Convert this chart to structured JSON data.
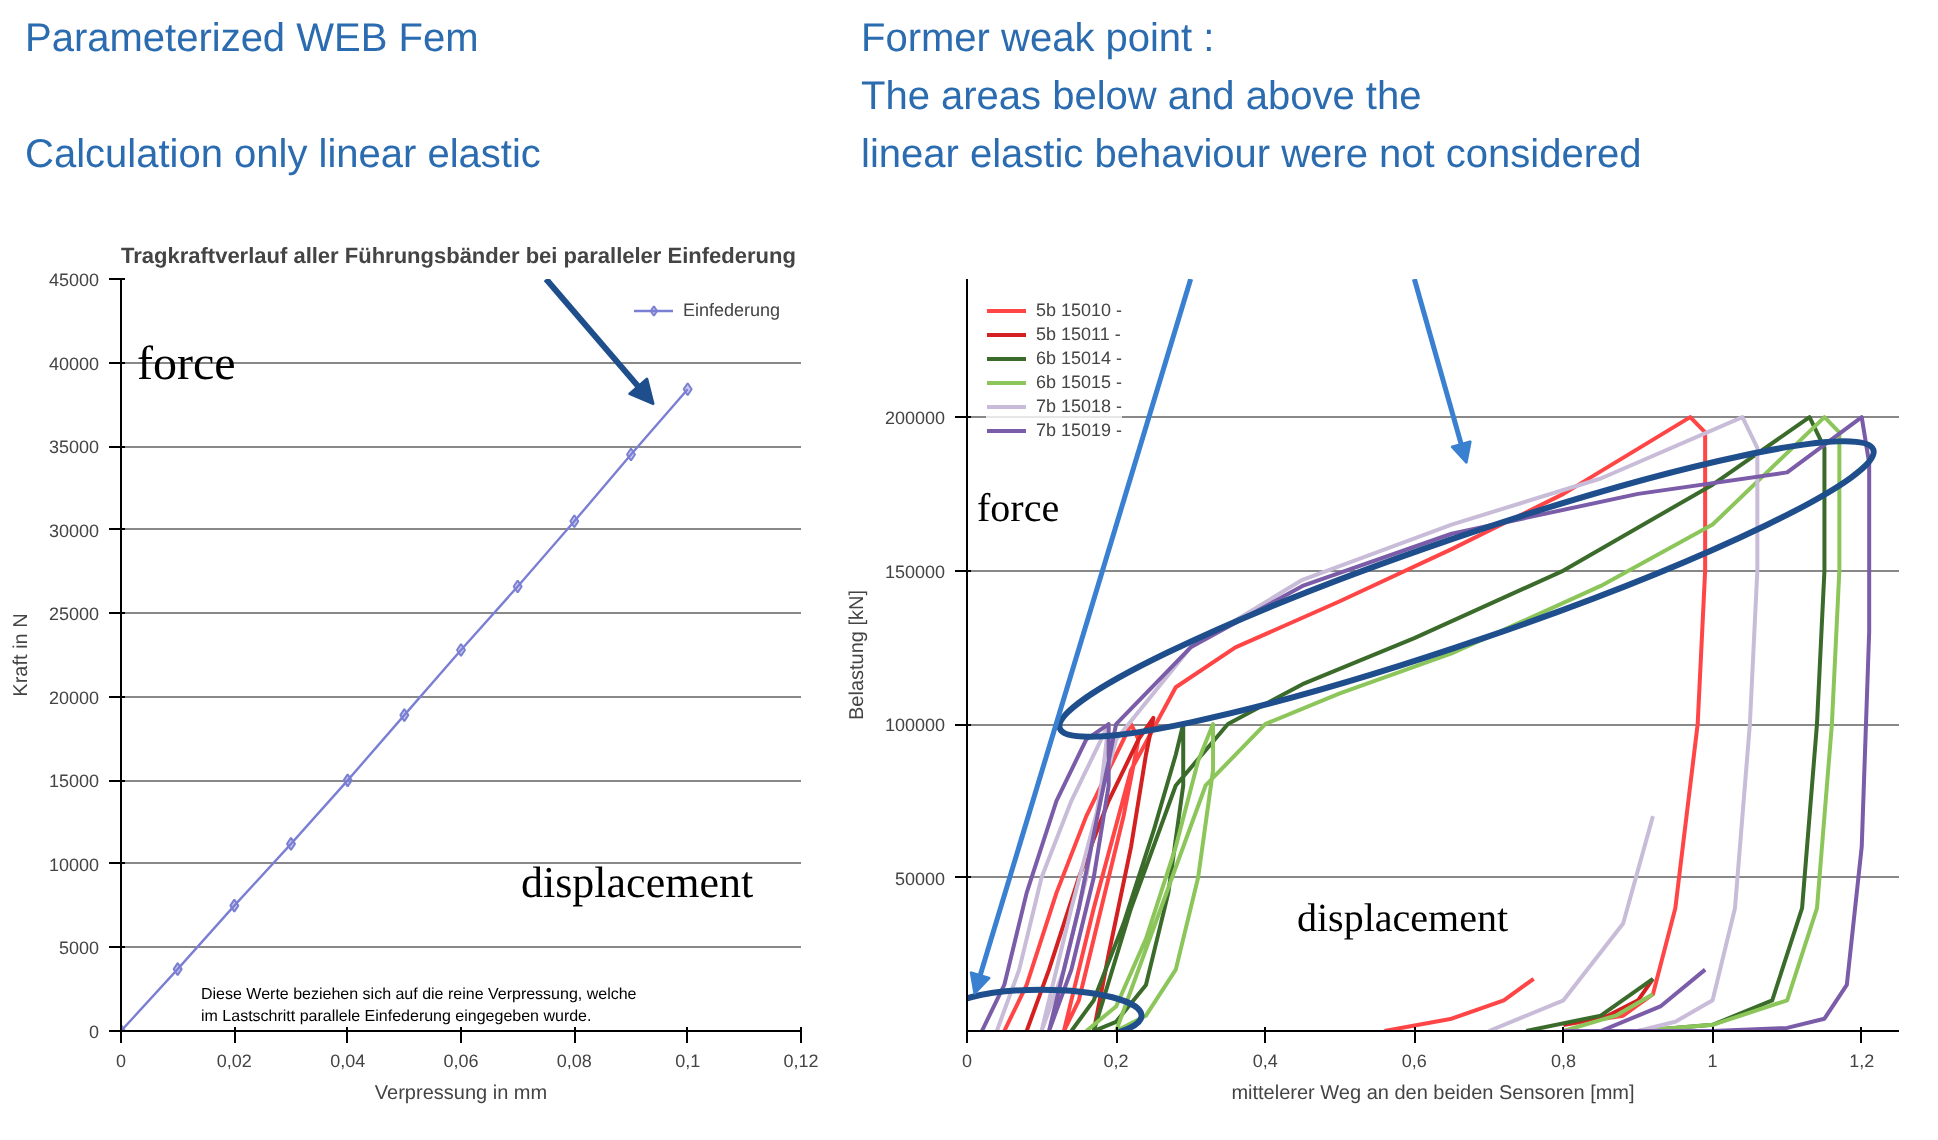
{
  "chart_data": [
    {
      "type": "other",
      "annotations": [
        "Parameterized WEB Fem",
        "Calculation only linear elastic"
      ]
    },
    {
      "type": "other",
      "annotations": [
        "Former weak point :",
        "The areas below and above the",
        "linear elastic  behaviour  were not considered"
      ]
    },
    {
      "type": "line",
      "title": "Tragkraftverlauf aller Führungsbänder bei paralleler Einfederung",
      "xlabel": "Verpressung in mm",
      "ylabel": "Kraft in N",
      "x": [
        0,
        0.01,
        0.02,
        0.03,
        0.04,
        0.05,
        0.06,
        0.07,
        0.08,
        0.09,
        0.1
      ],
      "series": [
        {
          "name": "Einfederung",
          "color": "#7b7fd4",
          "values": [
            0,
            3700,
            7500,
            11200,
            15000,
            18900,
            22800,
            26600,
            30500,
            34500,
            38400
          ]
        }
      ],
      "xlim": [
        0,
        0.12
      ],
      "ylim": [
        0,
        45000
      ],
      "xticks": [
        0,
        {
          "value": 0.02,
          "label": "0,02"
        },
        {
          "value": 0.04,
          "label": "0,04"
        },
        {
          "value": 0.06,
          "label": "0,06"
        },
        {
          "value": 0.08,
          "label": "0,08"
        },
        {
          "value": 0.1,
          "label": "0,1"
        },
        {
          "value": 0.12,
          "label": "0,12"
        }
      ],
      "yticks": [
        0,
        5000,
        10000,
        15000,
        20000,
        25000,
        30000,
        35000,
        40000,
        45000
      ],
      "grid": "y",
      "legend": "top right",
      "marker": "diamond",
      "annotations": [
        "force",
        "displacement",
        "Diese Werte beziehen sich auf die reine Verpressung, welche im Lastschritt parallele Einfederung eingegeben wurde."
      ]
    },
    {
      "type": "line",
      "xlabel": "mittelerer Weg an den beiden Sensoren [mm]",
      "ylabel": "Belastung [kN]",
      "series": [
        {
          "name": "5b 15010 -",
          "color": "#ff4545",
          "x": [
            0.05,
            0.08,
            0.12,
            0.16,
            0.2,
            0.22,
            0.23,
            0.21,
            0.18,
            0.15,
            0.13,
            0.13,
            0.17,
            0.22,
            0.28,
            0.36,
            0.5,
            0.65,
            0.8,
            0.97,
            0.99,
            0.99,
            0.98,
            0.95,
            0.92,
            0.88,
            0.8,
            null,
            0.56,
            0.65,
            0.72,
            0.76
          ],
          "values": [
            0,
            15000,
            45000,
            70000,
            90000,
            100000,
            95000,
            70000,
            40000,
            10000,
            0,
            0,
            40000,
            85000,
            112000,
            125000,
            140000,
            157000,
            175000,
            200000,
            195000,
            150000,
            100000,
            40000,
            12000,
            5000,
            2000,
            null,
            0,
            4000,
            10000,
            17000
          ]
        },
        {
          "name": "5b 15011 -",
          "color": "#d42020",
          "x": [
            0.08,
            0.11,
            0.15,
            0.19,
            0.23,
            0.25,
            0.24,
            0.22,
            0.19,
            0.17,
            null,
            0.8,
            0.86,
            0.9,
            0.92
          ],
          "values": [
            0,
            20000,
            50000,
            75000,
            95000,
            102000,
            90000,
            60000,
            25000,
            0,
            null,
            2000,
            5000,
            10000,
            17000
          ]
        },
        {
          "name": "6b 15014 -",
          "color": "#3a6b2a",
          "x": [
            0.14,
            0.17,
            0.21,
            0.25,
            0.28,
            0.29,
            0.29,
            0.27,
            0.24,
            0.2,
            0.17,
            0.17,
            0.22,
            0.28,
            0.35,
            0.45,
            0.6,
            0.8,
            1.0,
            1.13,
            1.15,
            1.15,
            1.14,
            1.12,
            1.08,
            1.0,
            0.9,
            null,
            0.75,
            0.85,
            0.92
          ],
          "values": [
            0,
            10000,
            35000,
            65000,
            90000,
            100000,
            80000,
            45000,
            15000,
            3000,
            0,
            0,
            40000,
            80000,
            100000,
            113000,
            128000,
            150000,
            178000,
            200000,
            190000,
            150000,
            100000,
            40000,
            10000,
            2000,
            0,
            null,
            0,
            5000,
            17000
          ]
        },
        {
          "name": "6b 15015 -",
          "color": "#8cc65a",
          "x": [
            0.16,
            0.2,
            0.24,
            0.28,
            0.31,
            0.33,
            0.33,
            0.31,
            0.28,
            0.24,
            0.2,
            0.2,
            0.26,
            0.32,
            0.4,
            0.5,
            0.65,
            0.85,
            1.0,
            1.15,
            1.17,
            1.17,
            1.16,
            1.14,
            1.1,
            1.0,
            0.9,
            null,
            0.8,
            0.87,
            0.92
          ],
          "values": [
            0,
            8000,
            30000,
            60000,
            88000,
            100000,
            85000,
            50000,
            20000,
            5000,
            0,
            0,
            40000,
            80000,
            100000,
            110000,
            123000,
            145000,
            165000,
            200000,
            195000,
            150000,
            100000,
            40000,
            10000,
            2000,
            0,
            null,
            0,
            5000,
            12000
          ]
        },
        {
          "name": "7b 15018 -",
          "color": "#c8bcd8",
          "x": [
            0.04,
            0.07,
            0.1,
            0.14,
            0.18,
            0.19,
            0.18,
            0.16,
            0.13,
            0.1,
            0.1,
            0.14,
            0.2,
            0.3,
            0.45,
            0.65,
            0.85,
            1.04,
            1.06,
            1.06,
            1.05,
            1.03,
            1.0,
            0.95,
            0.9,
            null,
            0.7,
            0.8,
            0.88,
            0.92
          ],
          "values": [
            0,
            20000,
            50000,
            75000,
            95000,
            100000,
            80000,
            50000,
            20000,
            0,
            0,
            40000,
            95000,
            125000,
            147000,
            165000,
            180000,
            200000,
            190000,
            150000,
            100000,
            40000,
            10000,
            3000,
            0,
            null,
            0,
            10000,
            35000,
            70000
          ]
        },
        {
          "name": "7b 15019 -",
          "color": "#7a5ca8",
          "x": [
            0.02,
            0.05,
            0.08,
            0.12,
            0.16,
            0.19,
            0.19,
            0.17,
            0.14,
            0.11,
            0.11,
            0.15,
            0.2,
            0.3,
            0.45,
            0.65,
            0.9,
            1.1,
            1.2,
            1.21,
            1.21,
            1.2,
            1.18,
            1.15,
            1.1,
            1.0,
            0.8,
            null,
            0.85,
            0.93,
            0.99
          ],
          "values": [
            0,
            15000,
            45000,
            75000,
            95000,
            100000,
            80000,
            50000,
            20000,
            0,
            0,
            40000,
            100000,
            125000,
            145000,
            162000,
            175000,
            182000,
            200000,
            185000,
            130000,
            60000,
            15000,
            4000,
            1000,
            0,
            0,
            null,
            0,
            8000,
            20000
          ]
        }
      ],
      "xlim": [
        0,
        1.25
      ],
      "ylim": [
        0,
        245000
      ],
      "xticks": [
        0,
        {
          "value": 0.2,
          "label": "0,2"
        },
        {
          "value": 0.4,
          "label": "0,4"
        },
        {
          "value": 0.6,
          "label": "0,6"
        },
        {
          "value": 0.8,
          "label": "0,8"
        },
        1,
        {
          "value": 1.2,
          "label": "1,2"
        }
      ],
      "yticks": [
        50000,
        100000,
        150000,
        200000
      ],
      "grid": "y",
      "legend": "top left",
      "annotations": [
        "force",
        "displacement"
      ]
    }
  ]
}
